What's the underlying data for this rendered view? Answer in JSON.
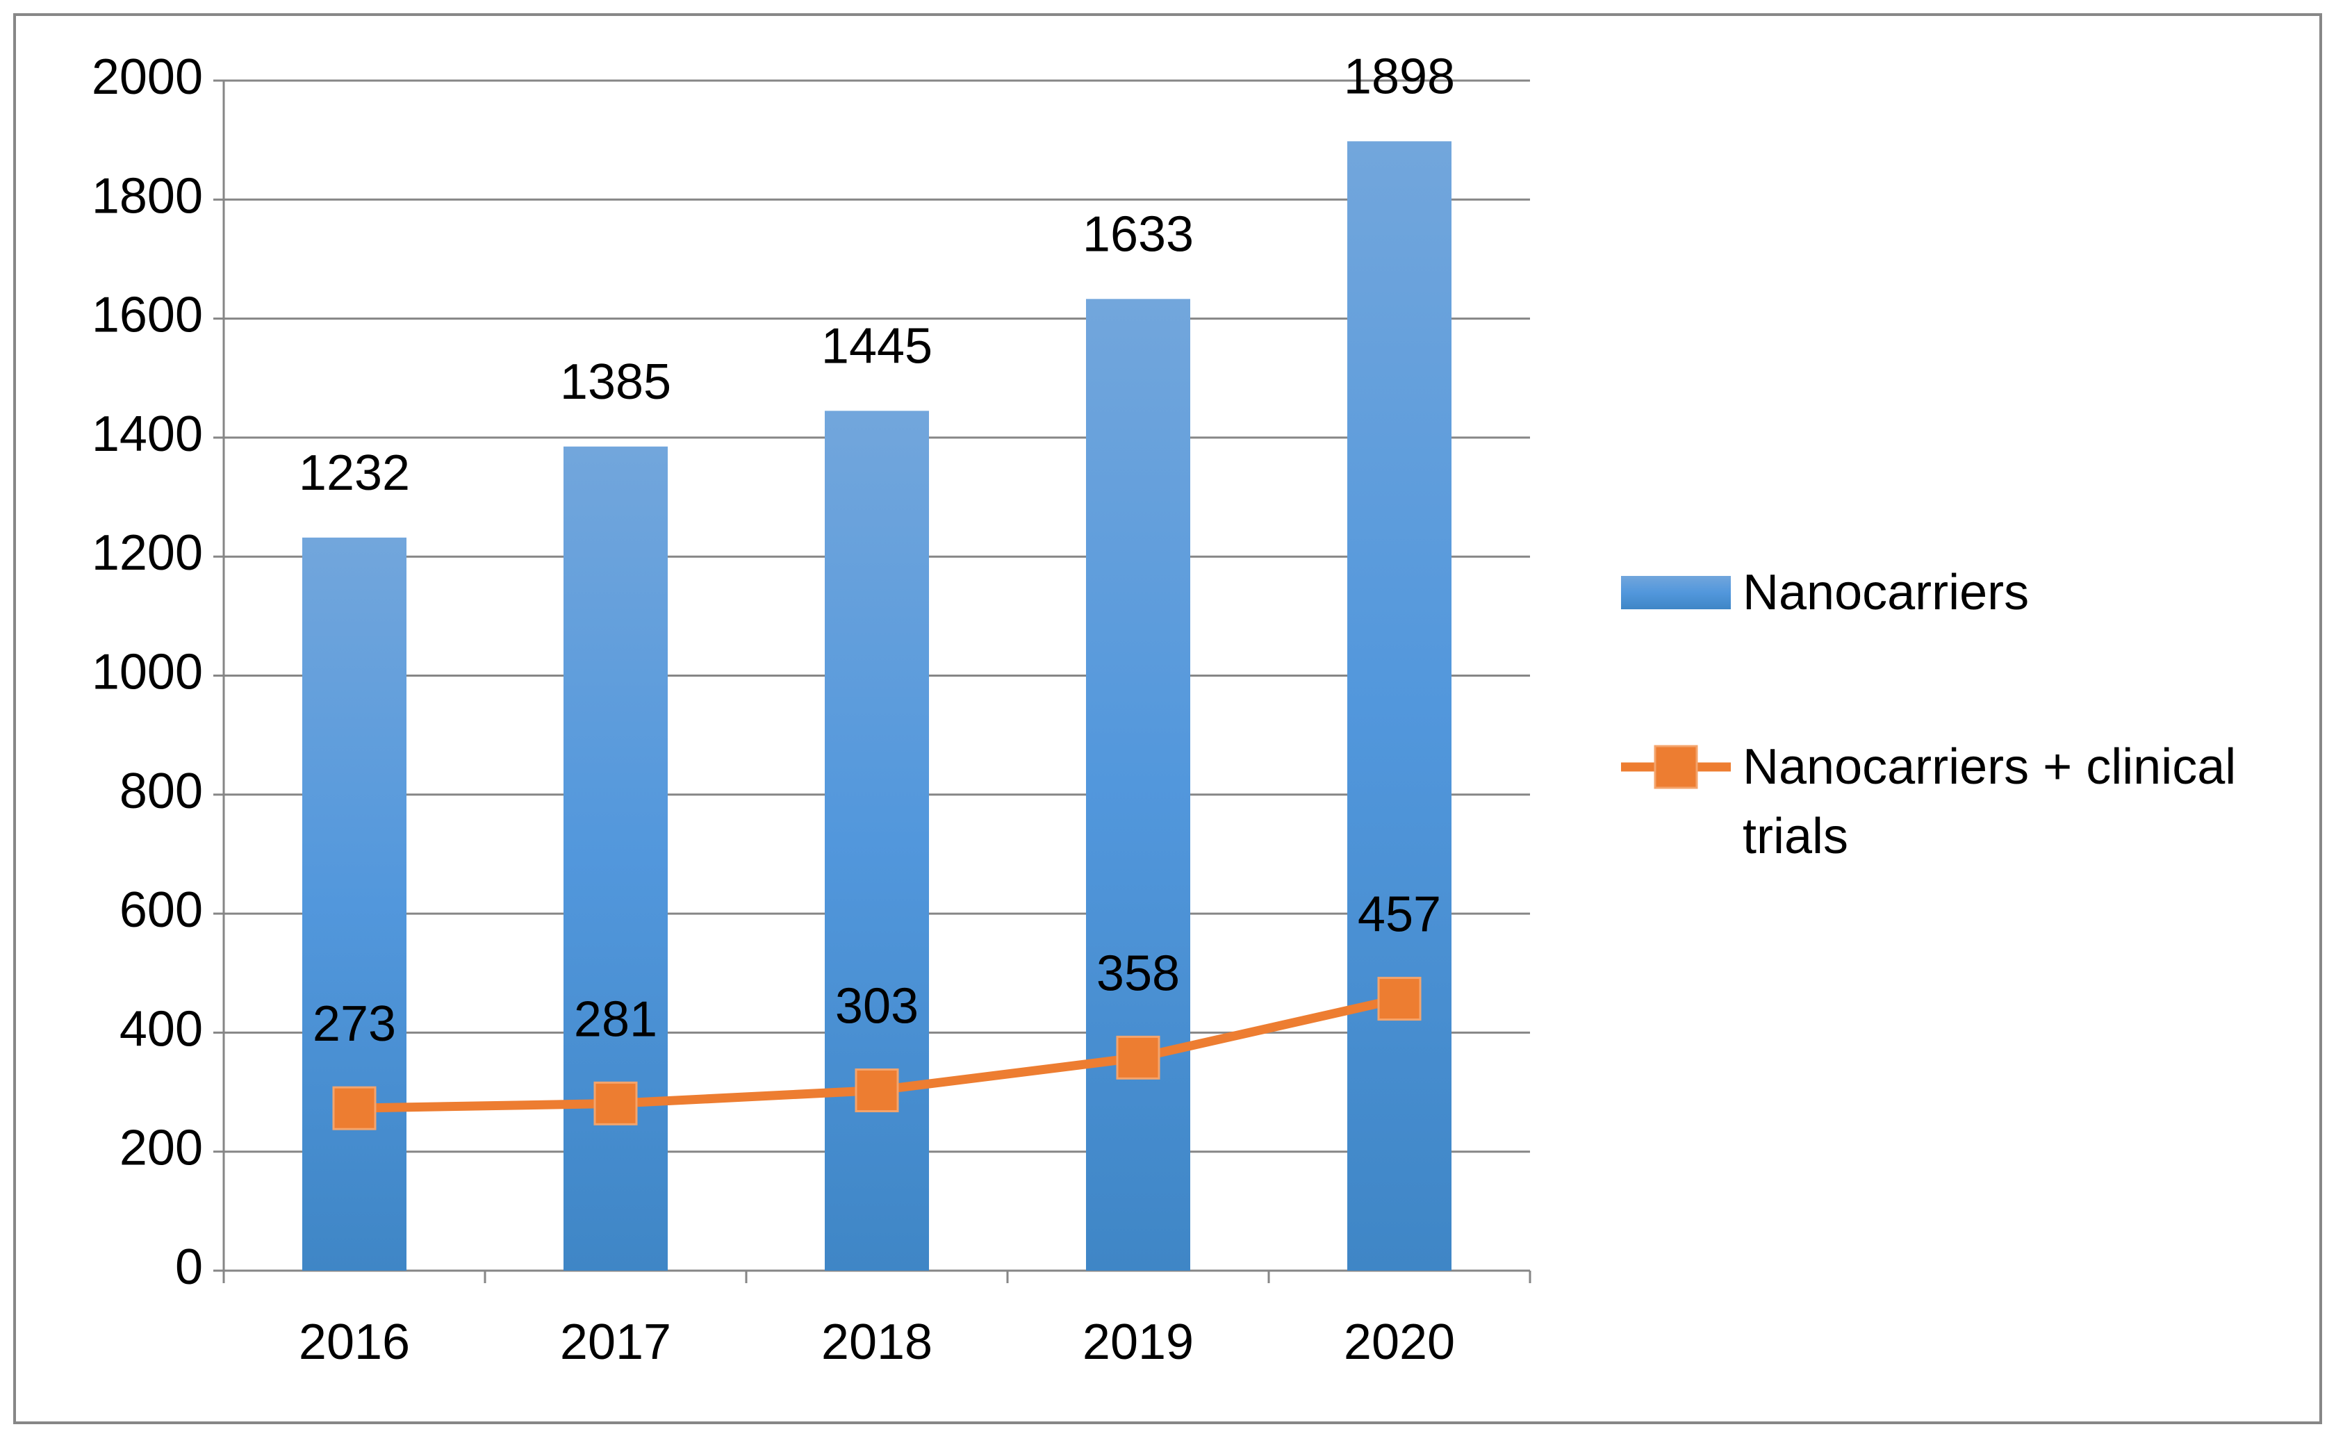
{
  "chart_data": {
    "type": "bar",
    "categories": [
      "2016",
      "2017",
      "2018",
      "2019",
      "2020"
    ],
    "series": [
      {
        "name": "Nanocarriers",
        "type": "bar",
        "color": "#5b9bd5",
        "values": [
          1232,
          1385,
          1445,
          1633,
          1898
        ]
      },
      {
        "name": "Nanocarriers + clinical trials",
        "type": "line",
        "color": "#ed7d31",
        "values": [
          273,
          281,
          303,
          358,
          457
        ]
      }
    ],
    "ylim": [
      0,
      2000
    ],
    "yticks": [
      0,
      200,
      400,
      600,
      800,
      1000,
      1200,
      1400,
      1600,
      1800,
      2000
    ],
    "grid": true,
    "legend": "right"
  }
}
